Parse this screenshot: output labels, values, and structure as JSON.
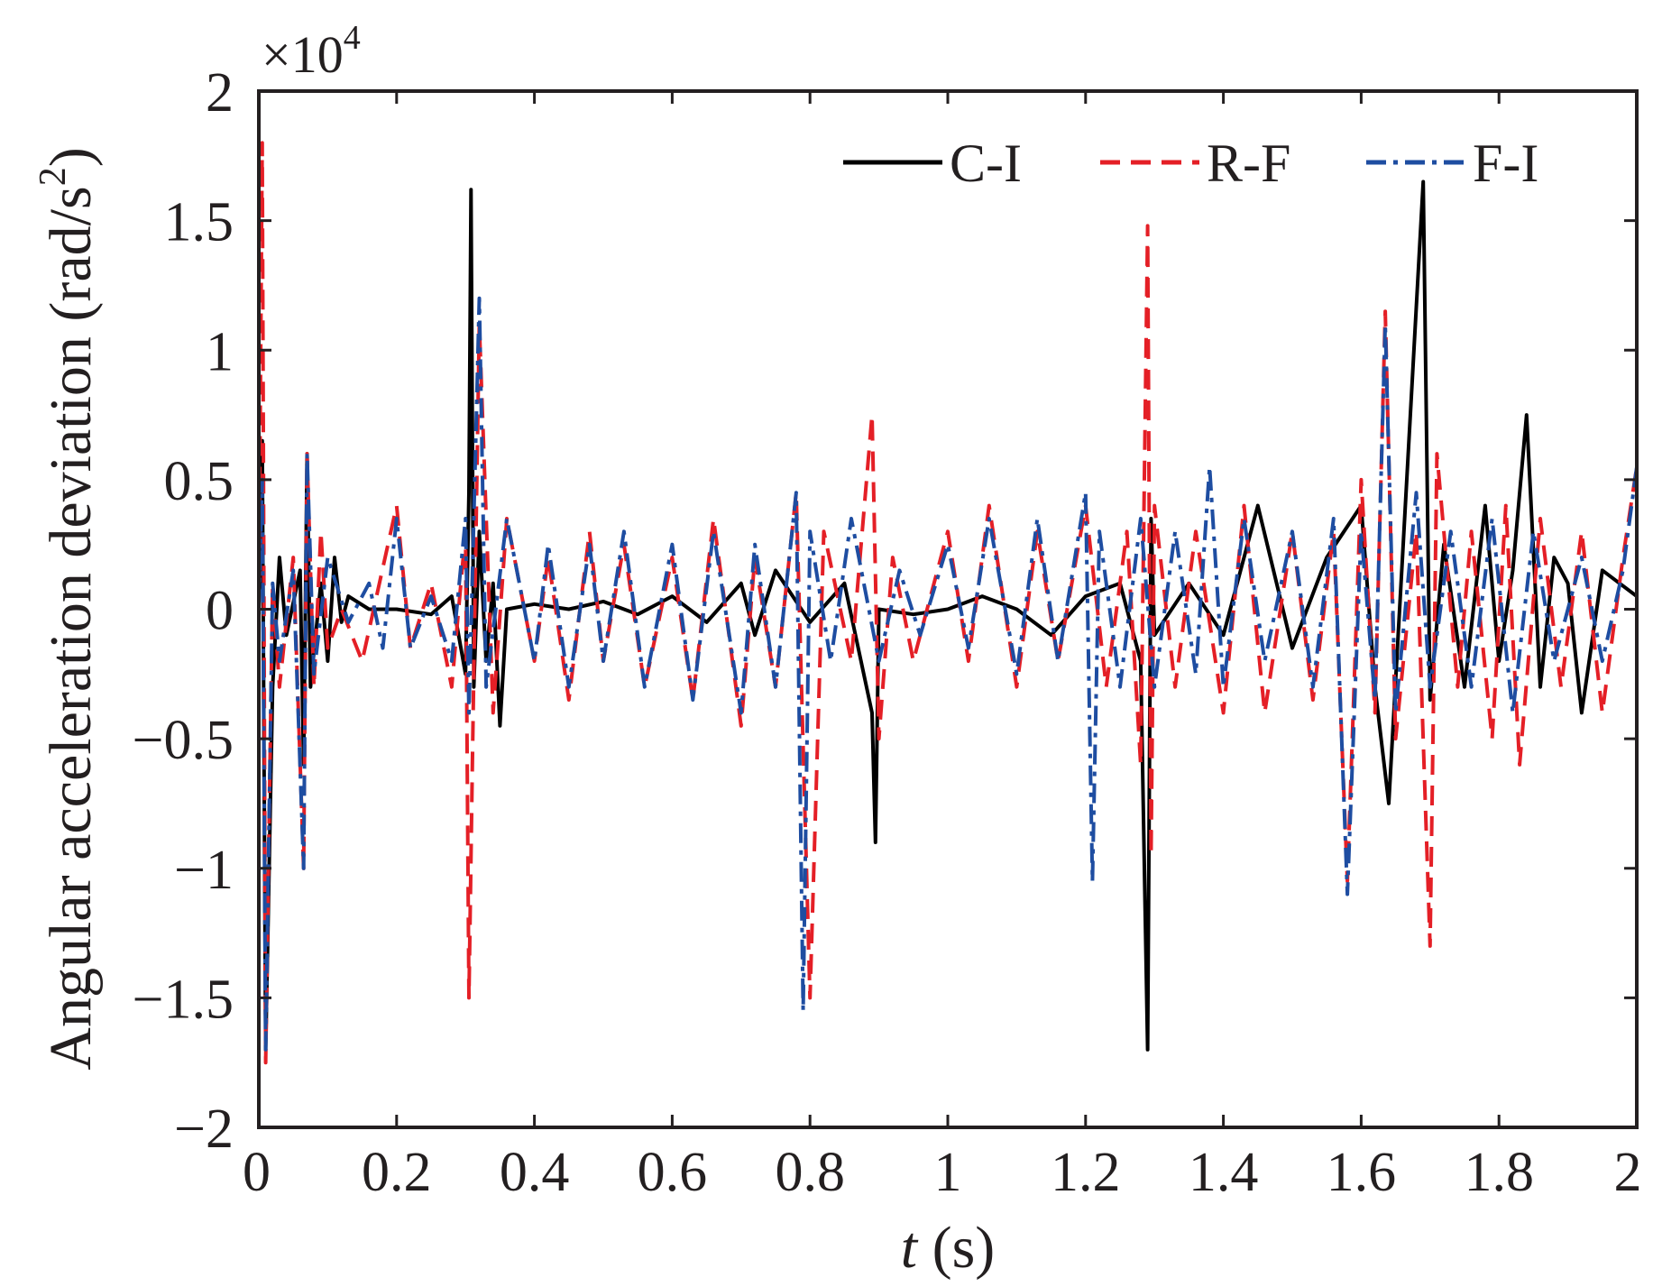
{
  "chart_data": {
    "type": "line",
    "title": "",
    "xlabel_var": "t",
    "xlabel_unit": "(s)",
    "ylabel": "Angular acceleration deviation (rad/s",
    "ylabel_sup": "2",
    "ylabel_close": ")",
    "y_multiplier_base": "×10",
    "y_multiplier_exp": "4",
    "xlim": [
      0,
      2
    ],
    "ylim": [
      -2,
      2
    ],
    "x_ticks": [
      0,
      0.2,
      0.4,
      0.6,
      0.8,
      1,
      1.2,
      1.4,
      1.6,
      1.8,
      2
    ],
    "x_tick_labels": [
      "0",
      "0.2",
      "0.4",
      "0.6",
      "0.8",
      "1",
      "1.2",
      "1.4",
      "1.6",
      "1.8",
      "2"
    ],
    "y_ticks": [
      -2,
      -1.5,
      -1,
      -0.5,
      0,
      0.5,
      1,
      1.5,
      2
    ],
    "y_tick_labels": [
      "−2",
      "−1.5",
      "−1",
      "−0.5",
      "0",
      "0.5",
      "1",
      "1.5",
      "2"
    ],
    "grid": false,
    "legend_position": "top-right",
    "series": [
      {
        "name": "C-I",
        "color": "#000000",
        "dash": "solid",
        "points": [
          [
            0,
            0
          ],
          [
            0.005,
            0.65
          ],
          [
            0.01,
            -1.7
          ],
          [
            0.02,
            -0.3
          ],
          [
            0.03,
            0.2
          ],
          [
            0.04,
            -0.1
          ],
          [
            0.06,
            0.15
          ],
          [
            0.065,
            -0.6
          ],
          [
            0.07,
            0.6
          ],
          [
            0.075,
            -0.3
          ],
          [
            0.09,
            0.1
          ],
          [
            0.1,
            -0.2
          ],
          [
            0.11,
            0.2
          ],
          [
            0.12,
            -0.05
          ],
          [
            0.13,
            0.05
          ],
          [
            0.16,
            0.0
          ],
          [
            0.2,
            0.0
          ],
          [
            0.25,
            -0.02
          ],
          [
            0.28,
            0.05
          ],
          [
            0.3,
            -0.25
          ],
          [
            0.305,
            0.45
          ],
          [
            0.308,
            1.62
          ],
          [
            0.312,
            -0.3
          ],
          [
            0.32,
            0.3
          ],
          [
            0.33,
            -0.2
          ],
          [
            0.34,
            0.1
          ],
          [
            0.35,
            -0.45
          ],
          [
            0.36,
            0.0
          ],
          [
            0.4,
            0.02
          ],
          [
            0.45,
            0.0
          ],
          [
            0.5,
            0.03
          ],
          [
            0.55,
            -0.02
          ],
          [
            0.6,
            0.05
          ],
          [
            0.65,
            -0.05
          ],
          [
            0.7,
            0.1
          ],
          [
            0.72,
            -0.1
          ],
          [
            0.75,
            0.15
          ],
          [
            0.8,
            -0.05
          ],
          [
            0.85,
            0.1
          ],
          [
            0.89,
            -0.4
          ],
          [
            0.895,
            -0.9
          ],
          [
            0.9,
            0.0
          ],
          [
            0.95,
            -0.02
          ],
          [
            1.0,
            0.0
          ],
          [
            1.05,
            0.05
          ],
          [
            1.1,
            0.0
          ],
          [
            1.15,
            -0.1
          ],
          [
            1.2,
            0.05
          ],
          [
            1.25,
            0.1
          ],
          [
            1.28,
            -0.2
          ],
          [
            1.29,
            -1.7
          ],
          [
            1.295,
            0.35
          ],
          [
            1.3,
            -0.1
          ],
          [
            1.35,
            0.1
          ],
          [
            1.4,
            -0.1
          ],
          [
            1.45,
            0.4
          ],
          [
            1.5,
            -0.15
          ],
          [
            1.55,
            0.2
          ],
          [
            1.6,
            0.4
          ],
          [
            1.62,
            -0.3
          ],
          [
            1.64,
            -0.75
          ],
          [
            1.66,
            0.2
          ],
          [
            1.69,
            1.65
          ],
          [
            1.7,
            -0.35
          ],
          [
            1.72,
            0.25
          ],
          [
            1.75,
            -0.3
          ],
          [
            1.78,
            0.4
          ],
          [
            1.8,
            -0.2
          ],
          [
            1.82,
            0.15
          ],
          [
            1.84,
            0.75
          ],
          [
            1.86,
            -0.3
          ],
          [
            1.88,
            0.2
          ],
          [
            1.9,
            0.1
          ],
          [
            1.92,
            -0.4
          ],
          [
            1.95,
            0.15
          ],
          [
            2.0,
            0.05
          ]
        ]
      },
      {
        "name": "R-F",
        "color": "#e41f26",
        "dash": "dashed",
        "points": [
          [
            0,
            0
          ],
          [
            0.005,
            1.8
          ],
          [
            0.01,
            -1.75
          ],
          [
            0.02,
            0.1
          ],
          [
            0.03,
            -0.3
          ],
          [
            0.05,
            0.2
          ],
          [
            0.065,
            -1.0
          ],
          [
            0.07,
            0.6
          ],
          [
            0.08,
            -0.3
          ],
          [
            0.09,
            0.3
          ],
          [
            0.1,
            -0.15
          ],
          [
            0.12,
            0.0
          ],
          [
            0.15,
            -0.2
          ],
          [
            0.2,
            0.4
          ],
          [
            0.22,
            -0.15
          ],
          [
            0.25,
            0.1
          ],
          [
            0.28,
            -0.3
          ],
          [
            0.3,
            0.3
          ],
          [
            0.305,
            -1.5
          ],
          [
            0.31,
            -0.6
          ],
          [
            0.32,
            1.1
          ],
          [
            0.34,
            -0.4
          ],
          [
            0.36,
            0.35
          ],
          [
            0.4,
            -0.2
          ],
          [
            0.42,
            0.2
          ],
          [
            0.45,
            -0.35
          ],
          [
            0.48,
            0.3
          ],
          [
            0.5,
            -0.2
          ],
          [
            0.53,
            0.25
          ],
          [
            0.56,
            -0.3
          ],
          [
            0.6,
            0.2
          ],
          [
            0.63,
            -0.35
          ],
          [
            0.66,
            0.35
          ],
          [
            0.7,
            -0.45
          ],
          [
            0.72,
            0.2
          ],
          [
            0.75,
            -0.3
          ],
          [
            0.78,
            0.45
          ],
          [
            0.8,
            -1.5
          ],
          [
            0.82,
            0.3
          ],
          [
            0.86,
            -0.2
          ],
          [
            0.89,
            0.75
          ],
          [
            0.9,
            -0.5
          ],
          [
            0.92,
            0.2
          ],
          [
            0.95,
            -0.2
          ],
          [
            1.0,
            0.3
          ],
          [
            1.03,
            -0.2
          ],
          [
            1.06,
            0.4
          ],
          [
            1.1,
            -0.3
          ],
          [
            1.13,
            0.3
          ],
          [
            1.16,
            -0.2
          ],
          [
            1.2,
            0.4
          ],
          [
            1.23,
            -0.3
          ],
          [
            1.26,
            0.3
          ],
          [
            1.28,
            -0.6
          ],
          [
            1.29,
            1.48
          ],
          [
            1.295,
            -0.95
          ],
          [
            1.3,
            0.4
          ],
          [
            1.33,
            -0.3
          ],
          [
            1.36,
            0.3
          ],
          [
            1.4,
            -0.4
          ],
          [
            1.43,
            0.4
          ],
          [
            1.46,
            -0.4
          ],
          [
            1.5,
            0.3
          ],
          [
            1.53,
            -0.35
          ],
          [
            1.56,
            0.3
          ],
          [
            1.58,
            -1.05
          ],
          [
            1.6,
            0.5
          ],
          [
            1.62,
            -0.4
          ],
          [
            1.635,
            1.15
          ],
          [
            1.65,
            -0.5
          ],
          [
            1.68,
            0.3
          ],
          [
            1.7,
            -1.3
          ],
          [
            1.71,
            0.6
          ],
          [
            1.74,
            -0.3
          ],
          [
            1.76,
            0.3
          ],
          [
            1.79,
            -0.5
          ],
          [
            1.81,
            0.4
          ],
          [
            1.83,
            -0.6
          ],
          [
            1.86,
            0.35
          ],
          [
            1.89,
            -0.3
          ],
          [
            1.92,
            0.3
          ],
          [
            1.95,
            -0.4
          ],
          [
            1.98,
            0.2
          ],
          [
            2.0,
            0.55
          ]
        ]
      },
      {
        "name": "F-I",
        "color": "#1e4da1",
        "dash": "dashdot",
        "points": [
          [
            0,
            0
          ],
          [
            0.005,
            0.5
          ],
          [
            0.01,
            -1.7
          ],
          [
            0.02,
            0.1
          ],
          [
            0.03,
            -0.2
          ],
          [
            0.05,
            0.15
          ],
          [
            0.065,
            -1.0
          ],
          [
            0.07,
            0.6
          ],
          [
            0.08,
            -0.25
          ],
          [
            0.1,
            0.2
          ],
          [
            0.13,
            -0.05
          ],
          [
            0.16,
            0.1
          ],
          [
            0.18,
            -0.15
          ],
          [
            0.2,
            0.35
          ],
          [
            0.22,
            -0.15
          ],
          [
            0.25,
            0.05
          ],
          [
            0.28,
            -0.2
          ],
          [
            0.3,
            0.35
          ],
          [
            0.305,
            -0.4
          ],
          [
            0.32,
            1.2
          ],
          [
            0.33,
            -0.3
          ],
          [
            0.36,
            0.35
          ],
          [
            0.4,
            -0.2
          ],
          [
            0.42,
            0.25
          ],
          [
            0.45,
            -0.3
          ],
          [
            0.48,
            0.25
          ],
          [
            0.5,
            -0.2
          ],
          [
            0.53,
            0.3
          ],
          [
            0.56,
            -0.3
          ],
          [
            0.6,
            0.25
          ],
          [
            0.63,
            -0.35
          ],
          [
            0.66,
            0.3
          ],
          [
            0.7,
            -0.4
          ],
          [
            0.72,
            0.25
          ],
          [
            0.75,
            -0.3
          ],
          [
            0.78,
            0.45
          ],
          [
            0.79,
            -1.55
          ],
          [
            0.8,
            0.3
          ],
          [
            0.83,
            -0.2
          ],
          [
            0.86,
            0.35
          ],
          [
            0.9,
            -0.2
          ],
          [
            0.93,
            0.15
          ],
          [
            0.96,
            -0.1
          ],
          [
            1.0,
            0.25
          ],
          [
            1.03,
            -0.15
          ],
          [
            1.06,
            0.35
          ],
          [
            1.1,
            -0.25
          ],
          [
            1.13,
            0.35
          ],
          [
            1.16,
            -0.2
          ],
          [
            1.2,
            0.45
          ],
          [
            1.21,
            -1.05
          ],
          [
            1.22,
            0.3
          ],
          [
            1.25,
            -0.3
          ],
          [
            1.28,
            0.35
          ],
          [
            1.3,
            -0.3
          ],
          [
            1.33,
            0.3
          ],
          [
            1.36,
            -0.25
          ],
          [
            1.38,
            0.55
          ],
          [
            1.4,
            -0.3
          ],
          [
            1.43,
            0.35
          ],
          [
            1.46,
            -0.2
          ],
          [
            1.5,
            0.3
          ],
          [
            1.53,
            -0.3
          ],
          [
            1.56,
            0.35
          ],
          [
            1.58,
            -1.1
          ],
          [
            1.6,
            0.3
          ],
          [
            1.62,
            -0.35
          ],
          [
            1.635,
            1.1
          ],
          [
            1.65,
            -0.4
          ],
          [
            1.68,
            0.45
          ],
          [
            1.7,
            -0.3
          ],
          [
            1.73,
            0.3
          ],
          [
            1.76,
            -0.3
          ],
          [
            1.79,
            0.35
          ],
          [
            1.82,
            -0.4
          ],
          [
            1.85,
            0.3
          ],
          [
            1.88,
            -0.2
          ],
          [
            1.92,
            0.2
          ],
          [
            1.95,
            -0.2
          ],
          [
            1.98,
            0.15
          ],
          [
            2.0,
            0.55
          ]
        ]
      }
    ]
  }
}
